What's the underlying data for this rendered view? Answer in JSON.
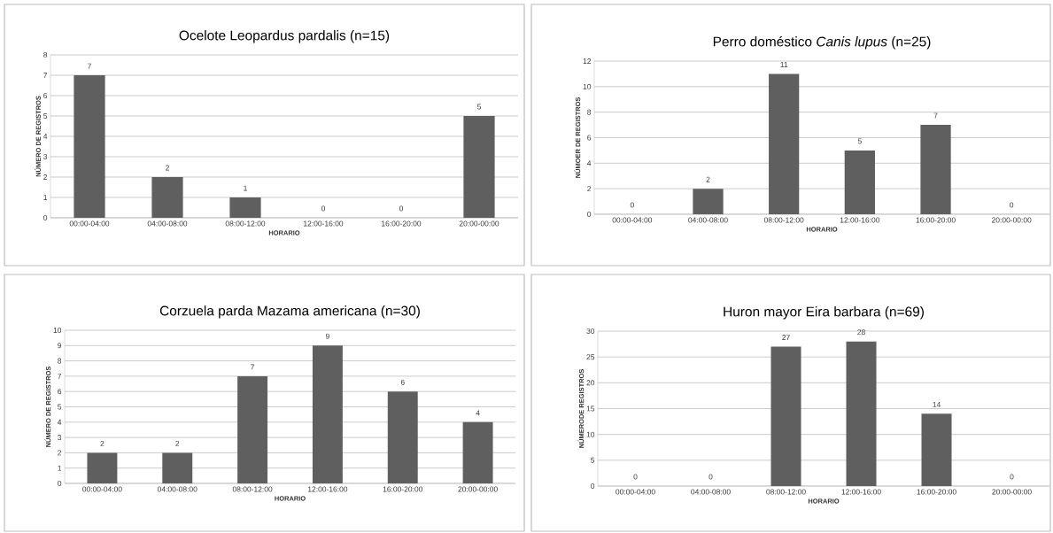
{
  "chart_data": [
    {
      "type": "bar",
      "title": "Ocelote Leopardus pardalis (n=15)",
      "xlabel": "HORARIO",
      "ylabel": "NÚMERO DE REGISTROS",
      "categories": [
        "00:00-04:00",
        "04:00-08:00",
        "08:00-12:00",
        "12:00-16:00",
        "16:00-20:00",
        "20:00-00:00"
      ],
      "values": [
        7,
        2,
        1,
        0,
        0,
        5
      ],
      "color": "#5f5f5f",
      "ylim": [
        0,
        8
      ],
      "yticks": [
        0,
        1,
        2,
        3,
        4,
        5,
        6,
        7,
        8
      ],
      "grid": "y",
      "data_labels": true
    },
    {
      "type": "bar",
      "title": "Perro doméstico *Canis lupus* (n=25)",
      "xlabel": "HORARIO",
      "ylabel": "NÚMOER DE REGISTROS",
      "categories": [
        "00:00-04:00",
        "04:00-08:00",
        "08:00-12:00",
        "12:00-16:00",
        "16:00-20:00",
        "20:00-00:00"
      ],
      "values": [
        0,
        2,
        11,
        5,
        7,
        0
      ],
      "color": "#5f5f5f",
      "ylim": [
        0,
        12
      ],
      "yticks": [
        0,
        2,
        4,
        6,
        8,
        10,
        12
      ],
      "grid": "y",
      "data_labels": true
    },
    {
      "type": "bar",
      "title": "Corzuela parda Mazama americana (n=30)",
      "xlabel": "HORARIO",
      "ylabel": "NÚMERO DE REGISTROS",
      "categories": [
        "00:00-04:00",
        "04:00-08:00",
        "08:00-12:00",
        "12:00-16:00",
        "16:00-20:00",
        "20:00-00:00"
      ],
      "values": [
        2,
        2,
        7,
        9,
        6,
        4
      ],
      "color": "#5f5f5f",
      "ylim": [
        0,
        10
      ],
      "yticks": [
        0,
        1,
        2,
        3,
        4,
        5,
        6,
        7,
        8,
        9,
        10
      ],
      "grid": "y",
      "data_labels": true
    },
    {
      "type": "bar",
      "title": "Huron mayor Eira barbara (n=69)",
      "xlabel": "HORARIO",
      "ylabel": "NÚMERODE REGISTROS",
      "categories": [
        "00:00-04:00",
        "04:00-08:00",
        "08:00-12:00",
        "12:00-16:00",
        "16:00-20:00",
        "20:00-00:00"
      ],
      "values": [
        0,
        0,
        27,
        28,
        14,
        0
      ],
      "color": "#5f5f5f",
      "ylim": [
        0,
        30
      ],
      "yticks": [
        0,
        5,
        10,
        15,
        20,
        25,
        30
      ],
      "grid": "y",
      "data_labels": true
    }
  ]
}
